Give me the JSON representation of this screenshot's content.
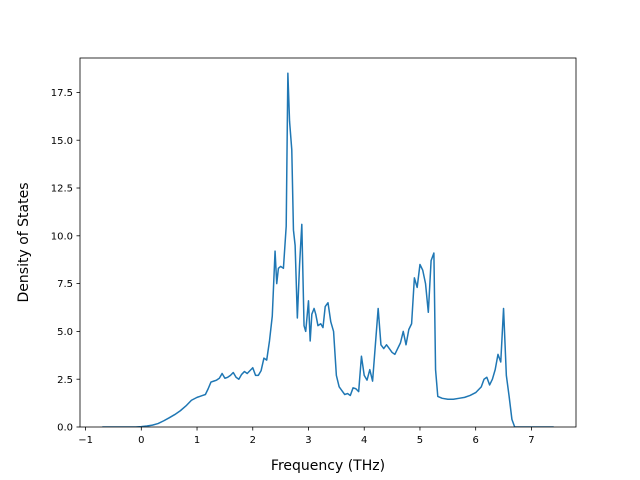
{
  "chart_data": {
    "type": "line",
    "title": "",
    "xlabel": "Frequency (THz)",
    "ylabel": "Density of States",
    "xlim": [
      -1.1,
      7.8
    ],
    "ylim": [
      0,
      19.3
    ],
    "xticks": [
      -1,
      0,
      1,
      2,
      3,
      4,
      5,
      6,
      7
    ],
    "xtick_labels": [
      "−1",
      "0",
      "1",
      "2",
      "3",
      "4",
      "5",
      "6",
      "7"
    ],
    "yticks": [
      0,
      2.5,
      5,
      7.5,
      10,
      12.5,
      15,
      17.5
    ],
    "ytick_labels": [
      "0.0",
      "2.5",
      "5.0",
      "7.5",
      "10.0",
      "12.5",
      "15.0",
      "17.5"
    ],
    "grid": false,
    "legend": "none",
    "series": [
      {
        "color": "#1f77b4",
        "x": [
          -0.7,
          -0.5,
          -0.3,
          -0.1,
          0.0,
          0.1,
          0.2,
          0.3,
          0.4,
          0.5,
          0.6,
          0.7,
          0.8,
          0.9,
          1.0,
          1.05,
          1.1,
          1.15,
          1.2,
          1.25,
          1.3,
          1.35,
          1.4,
          1.45,
          1.5,
          1.55,
          1.6,
          1.65,
          1.7,
          1.75,
          1.8,
          1.85,
          1.9,
          1.95,
          2.0,
          2.05,
          2.1,
          2.15,
          2.2,
          2.25,
          2.3,
          2.35,
          2.4,
          2.43,
          2.46,
          2.5,
          2.55,
          2.6,
          2.63,
          2.66,
          2.7,
          2.73,
          2.76,
          2.8,
          2.84,
          2.88,
          2.92,
          2.95,
          3.0,
          3.03,
          3.06,
          3.1,
          3.13,
          3.17,
          3.22,
          3.26,
          3.3,
          3.35,
          3.4,
          3.45,
          3.5,
          3.55,
          3.6,
          3.65,
          3.7,
          3.75,
          3.8,
          3.85,
          3.9,
          3.95,
          4.0,
          4.05,
          4.1,
          4.15,
          4.2,
          4.25,
          4.3,
          4.35,
          4.4,
          4.45,
          4.5,
          4.55,
          4.6,
          4.65,
          4.7,
          4.75,
          4.8,
          4.85,
          4.9,
          4.95,
          5.0,
          5.05,
          5.1,
          5.15,
          5.2,
          5.25,
          5.28,
          5.32,
          5.4,
          5.5,
          5.6,
          5.7,
          5.8,
          5.9,
          6.0,
          6.1,
          6.15,
          6.2,
          6.25,
          6.3,
          6.35,
          6.4,
          6.45,
          6.5,
          6.55,
          6.6,
          6.65,
          6.7,
          6.75,
          6.8,
          7.0,
          7.2,
          7.4
        ],
        "y": [
          0.0,
          0.0,
          0.0,
          0.0,
          0.02,
          0.05,
          0.1,
          0.18,
          0.32,
          0.48,
          0.65,
          0.85,
          1.1,
          1.4,
          1.55,
          1.6,
          1.65,
          1.7,
          2.0,
          2.35,
          2.4,
          2.45,
          2.55,
          2.8,
          2.55,
          2.6,
          2.7,
          2.85,
          2.6,
          2.5,
          2.75,
          2.9,
          2.8,
          2.95,
          3.1,
          2.7,
          2.7,
          2.95,
          3.6,
          3.5,
          4.5,
          5.8,
          9.2,
          7.5,
          8.3,
          8.4,
          8.3,
          10.5,
          18.5,
          16.0,
          14.5,
          10.3,
          9.5,
          5.7,
          8.5,
          10.6,
          5.3,
          5.0,
          6.6,
          4.5,
          5.9,
          6.2,
          5.9,
          5.3,
          5.4,
          5.2,
          6.3,
          6.5,
          5.5,
          5.0,
          2.7,
          2.1,
          1.9,
          1.7,
          1.75,
          1.65,
          2.05,
          2.0,
          1.85,
          3.7,
          2.7,
          2.45,
          3.0,
          2.4,
          4.3,
          6.2,
          4.3,
          4.1,
          4.3,
          4.1,
          3.9,
          3.8,
          4.1,
          4.4,
          5.0,
          4.3,
          5.1,
          5.4,
          7.8,
          7.3,
          8.5,
          8.2,
          7.5,
          6.0,
          8.7,
          9.1,
          3.0,
          1.6,
          1.5,
          1.45,
          1.45,
          1.5,
          1.55,
          1.65,
          1.8,
          2.1,
          2.5,
          2.6,
          2.2,
          2.5,
          3.0,
          3.8,
          3.4,
          6.2,
          2.7,
          1.6,
          0.4,
          0.0,
          0.0,
          0.0,
          0.0,
          0.0,
          0.0
        ]
      }
    ]
  }
}
